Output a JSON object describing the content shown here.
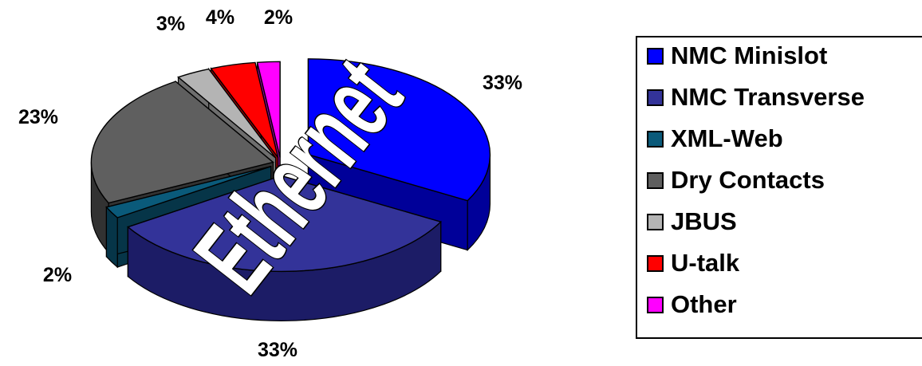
{
  "chart_data": {
    "type": "pie",
    "style": "3d-exploded",
    "categories": [
      "NMC Minislot",
      "NMC Transverse",
      "XML-Web",
      "Dry Contacts",
      "JBUS",
      "U-talk",
      "Other"
    ],
    "values": [
      33,
      33,
      2,
      23,
      3,
      4,
      2
    ],
    "value_labels": [
      "33%",
      "33%",
      "2%",
      "23%",
      "3%",
      "4%",
      "2%"
    ],
    "colors": [
      "#0000ff",
      "#333399",
      "#0a5a7a",
      "#5f5f5f",
      "#b4b4b4",
      "#ff0000",
      "#ff00ff"
    ],
    "side_colors": [
      "#000099",
      "#1c1c66",
      "#063548",
      "#323232",
      "#6e6e6e",
      "#9a0000",
      "#990099"
    ],
    "legend": {
      "position": "right",
      "entries": [
        "NMC Minislot",
        "NMC Transverse",
        "XML-Web",
        "Dry Contacts",
        "JBUS",
        "U-talk",
        "Other"
      ]
    },
    "overlay_text": "Ethernet"
  }
}
